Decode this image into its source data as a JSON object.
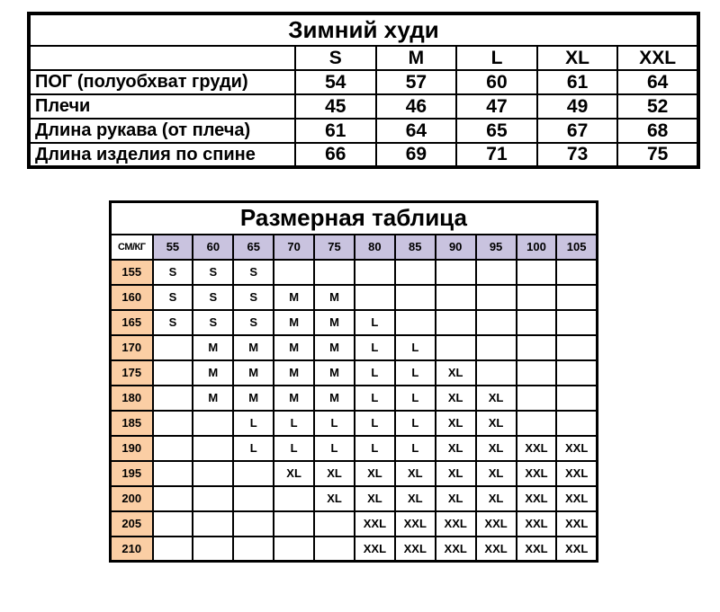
{
  "hoodie_table": {
    "title": "Зимний худи",
    "size_headers": [
      "S",
      "M",
      "L",
      "XL",
      "XXL"
    ],
    "rows": [
      {
        "label": "ПОГ (полуобхват груди)",
        "values": [
          "54",
          "57",
          "60",
          "61",
          "64"
        ]
      },
      {
        "label": "Плечи",
        "values": [
          "45",
          "46",
          "47",
          "49",
          "52"
        ]
      },
      {
        "label": "Длина рукава (от плеча)",
        "values": [
          "61",
          "64",
          "65",
          "67",
          "68"
        ]
      },
      {
        "label": "Длина изделия по спине",
        "values": [
          "66",
          "69",
          "71",
          "73",
          "75"
        ]
      }
    ]
  },
  "size_matrix_table": {
    "title": "Размерная таблица",
    "corner_label": "СМ/КГ",
    "weight_headers": [
      "55",
      "60",
      "65",
      "70",
      "75",
      "80",
      "85",
      "90",
      "95",
      "100",
      "105"
    ],
    "rows": [
      {
        "height": "155",
        "cells": [
          "S",
          "S",
          "S",
          "",
          "",
          "",
          "",
          "",
          "",
          "",
          ""
        ]
      },
      {
        "height": "160",
        "cells": [
          "S",
          "S",
          "S",
          "M",
          "M",
          "",
          "",
          "",
          "",
          "",
          ""
        ]
      },
      {
        "height": "165",
        "cells": [
          "S",
          "S",
          "S",
          "M",
          "M",
          "L",
          "",
          "",
          "",
          "",
          ""
        ]
      },
      {
        "height": "170",
        "cells": [
          "",
          "M",
          "M",
          "M",
          "M",
          "L",
          "L",
          "",
          "",
          "",
          ""
        ]
      },
      {
        "height": "175",
        "cells": [
          "",
          "M",
          "M",
          "M",
          "M",
          "L",
          "L",
          "XL",
          "",
          "",
          ""
        ]
      },
      {
        "height": "180",
        "cells": [
          "",
          "M",
          "M",
          "M",
          "M",
          "L",
          "L",
          "XL",
          "XL",
          "",
          ""
        ]
      },
      {
        "height": "185",
        "cells": [
          "",
          "",
          "L",
          "L",
          "L",
          "L",
          "L",
          "XL",
          "XL",
          "",
          ""
        ]
      },
      {
        "height": "190",
        "cells": [
          "",
          "",
          "L",
          "L",
          "L",
          "L",
          "L",
          "XL",
          "XL",
          "XXL",
          "XXL"
        ]
      },
      {
        "height": "195",
        "cells": [
          "",
          "",
          "",
          "XL",
          "XL",
          "XL",
          "XL",
          "XL",
          "XL",
          "XXL",
          "XXL"
        ]
      },
      {
        "height": "200",
        "cells": [
          "",
          "",
          "",
          "",
          "XL",
          "XL",
          "XL",
          "XL",
          "XL",
          "XXL",
          "XXL"
        ]
      },
      {
        "height": "205",
        "cells": [
          "",
          "",
          "",
          "",
          "",
          "XXL",
          "XXL",
          "XXL",
          "XXL",
          "XXL",
          "XXL"
        ]
      },
      {
        "height": "210",
        "cells": [
          "",
          "",
          "",
          "",
          "",
          "XXL",
          "XXL",
          "XXL",
          "XXL",
          "XXL",
          "XXL"
        ]
      }
    ],
    "colors": {
      "weight_header_bg": "#c9c3df",
      "height_header_bg": "#fbcea4",
      "border": "#000000"
    }
  }
}
